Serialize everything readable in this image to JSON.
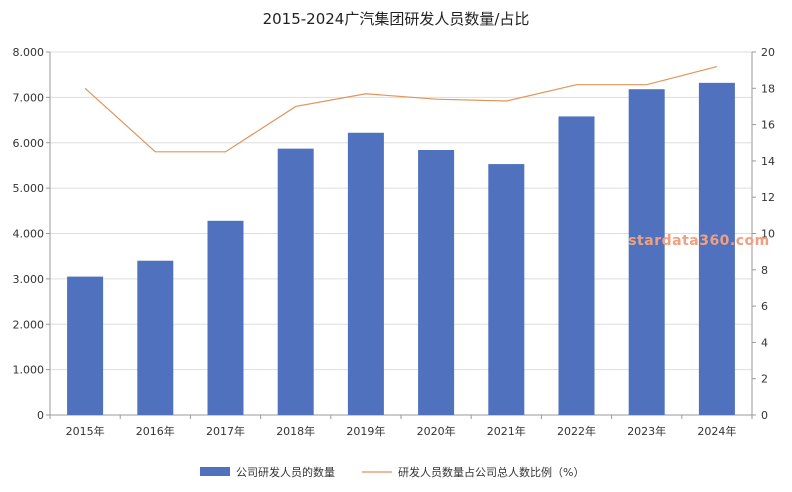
{
  "chart_data": {
    "type": "bar",
    "title": "2015-2024广汽集团研发人员数量/占比",
    "categories": [
      "2015年",
      "2016年",
      "2017年",
      "2018年",
      "2019年",
      "2020年",
      "2021年",
      "2022年",
      "2023年",
      "2024年"
    ],
    "series": [
      {
        "name": "公司研发人员的数量",
        "type": "bar",
        "axis": "left",
        "color": "#4f71be",
        "values": [
          3050,
          3400,
          4280,
          5870,
          6220,
          5840,
          5530,
          6580,
          7180,
          7320
        ]
      },
      {
        "name": "研发人员数量占公司总人数比例（%）",
        "type": "line",
        "axis": "right",
        "color": "#e0955a",
        "values": [
          18.0,
          14.5,
          14.5,
          17.0,
          17.7,
          17.4,
          17.3,
          18.2,
          18.2,
          19.2
        ]
      }
    ],
    "y_left": {
      "ylim": [
        0,
        8000
      ],
      "ticks": [
        0,
        1000,
        2000,
        3000,
        4000,
        5000,
        6000,
        7000,
        8000
      ],
      "tick_labels": [
        "0",
        "1.000",
        "2.000",
        "3.000",
        "4.000",
        "5.000",
        "6.000",
        "7.000",
        "8.000"
      ]
    },
    "y_right": {
      "ylim": [
        0,
        20
      ],
      "ticks": [
        0,
        2,
        4,
        6,
        8,
        10,
        12,
        14,
        16,
        18,
        20
      ],
      "tick_labels": [
        "0",
        "2",
        "4",
        "6",
        "8",
        "10",
        "12",
        "14",
        "16",
        "18",
        "20"
      ]
    },
    "grid": true,
    "legend_position": "bottom-center",
    "watermark": "stardata360.com"
  }
}
